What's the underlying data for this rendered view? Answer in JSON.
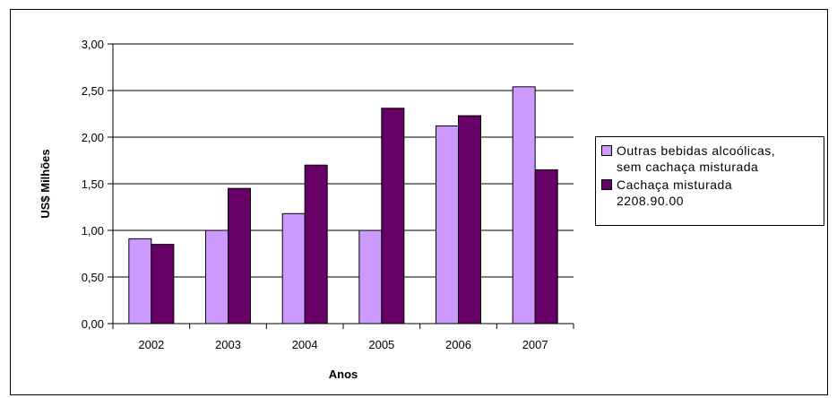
{
  "chart_data": {
    "type": "bar",
    "categories": [
      "2002",
      "2003",
      "2004",
      "2005",
      "2006",
      "2007"
    ],
    "series": [
      {
        "name": "Outras bebidas alcoólicas,\nsem cachaça misturada",
        "values": [
          0.91,
          1.0,
          1.18,
          1.0,
          2.12,
          2.54
        ],
        "color": "#cc99ff"
      },
      {
        "name": "Cachaça misturada\n2208.90.00",
        "values": [
          0.85,
          1.45,
          1.7,
          2.31,
          2.23,
          1.65
        ],
        "color": "#660066"
      }
    ],
    "title": "",
    "xlabel": "Anos",
    "ylabel": "US$ Milhões",
    "ylim": [
      0,
      3
    ],
    "yticks": [
      "0,00",
      "0,50",
      "1,00",
      "1,50",
      "2,00",
      "2,50",
      "3,00"
    ],
    "grid": true,
    "legend": "right"
  }
}
